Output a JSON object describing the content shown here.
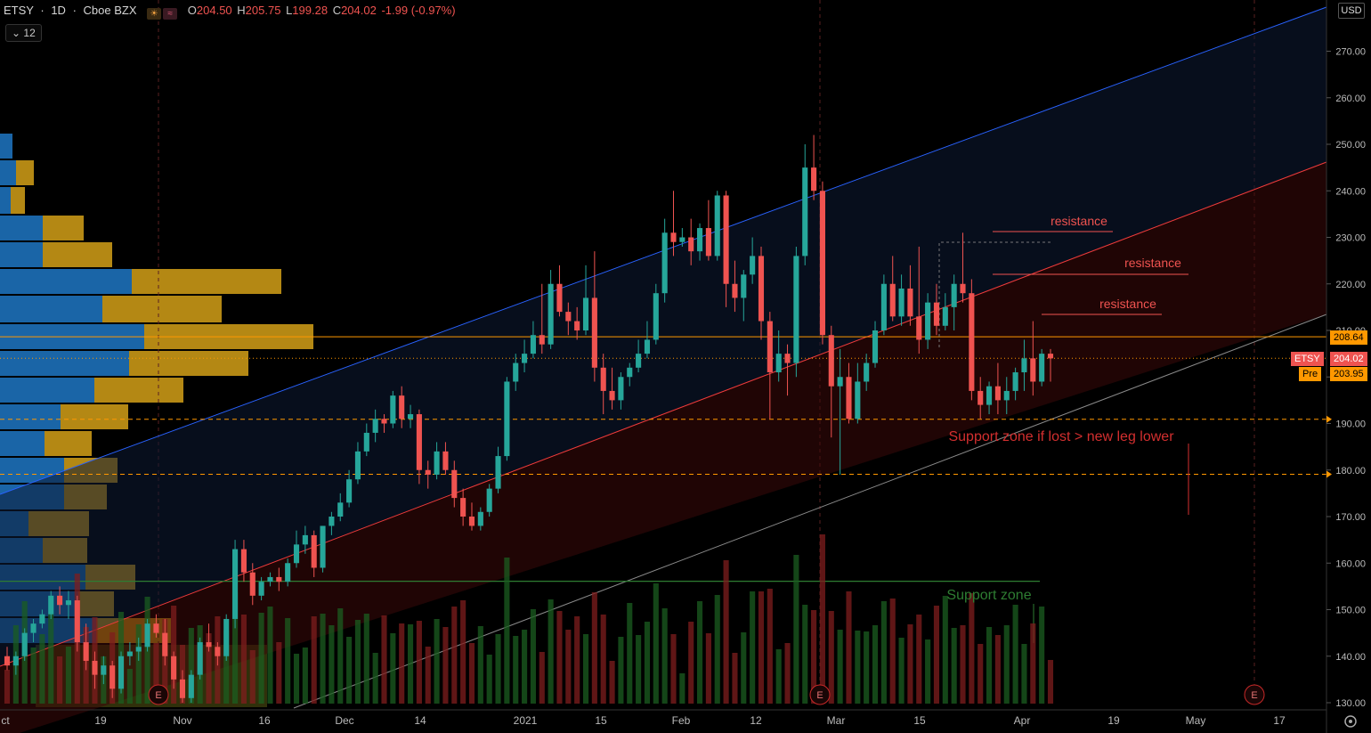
{
  "header": {
    "symbol": "ETSY",
    "interval": "1D",
    "exchange": "Cboe BZX",
    "open_label": "O",
    "open": "204.50",
    "high_label": "H",
    "high": "205.75",
    "low_label": "L",
    "low": "199.28",
    "close_label": "C",
    "close": "204.02",
    "change": "-1.99 (-0.97%)",
    "indicator_value": "12"
  },
  "currency": "USD",
  "price_tags": {
    "level": "208.64",
    "symbol": "ETSY",
    "last": "204.02",
    "pre_label": "Pre",
    "pre": "203.95"
  },
  "annotations": {
    "resistance_1": "resistance",
    "resistance_2": "resistance",
    "resistance_3": "resistance",
    "support_red": "Support zone if lost > new leg lower",
    "support_green": "Support zone",
    "earnings_1": "E",
    "earnings_2": "E",
    "earnings_3": "E"
  },
  "colors": {
    "up": "#26a69a",
    "down": "#ef5350",
    "orange": "#ff9800",
    "blue_line": "#2962ff",
    "red_line": "#ef3b3b",
    "green_line": "#2e7d32"
  },
  "chart_data": {
    "type": "candlestick",
    "ylim": [
      129,
      283
    ],
    "y_ticks": [
      130,
      140,
      150,
      160,
      170,
      180,
      190,
      200,
      210,
      220,
      230,
      240,
      250,
      260,
      270
    ],
    "x_labels": [
      "ct",
      "19",
      "Nov",
      "16",
      "Dec",
      "14",
      "2021",
      "15",
      "Feb",
      "12",
      "Mar",
      "15",
      "Apr",
      "19",
      "May",
      "17"
    ],
    "horizontal_levels": [
      208.64,
      190.9,
      179.1,
      156.1
    ],
    "series": [
      {
        "o": 140,
        "h": 142,
        "l": 137,
        "c": 138
      },
      {
        "o": 138,
        "h": 141,
        "l": 136,
        "c": 140
      },
      {
        "o": 140,
        "h": 146,
        "l": 139,
        "c": 145
      },
      {
        "o": 145,
        "h": 148,
        "l": 143,
        "c": 147
      },
      {
        "o": 147,
        "h": 150,
        "l": 146,
        "c": 149
      },
      {
        "o": 149,
        "h": 154,
        "l": 148,
        "c": 153
      },
      {
        "o": 153,
        "h": 155,
        "l": 149,
        "c": 151
      },
      {
        "o": 151,
        "h": 154,
        "l": 148,
        "c": 152
      },
      {
        "o": 152,
        "h": 153,
        "l": 141,
        "c": 143
      },
      {
        "o": 143,
        "h": 147,
        "l": 137,
        "c": 139
      },
      {
        "o": 139,
        "h": 141,
        "l": 133,
        "c": 136
      },
      {
        "o": 136,
        "h": 140,
        "l": 134,
        "c": 138
      },
      {
        "o": 138,
        "h": 139,
        "l": 131,
        "c": 133
      },
      {
        "o": 133,
        "h": 141,
        "l": 132,
        "c": 140
      },
      {
        "o": 140,
        "h": 143,
        "l": 138,
        "c": 141
      },
      {
        "o": 141,
        "h": 144,
        "l": 139,
        "c": 142
      },
      {
        "o": 142,
        "h": 148,
        "l": 141,
        "c": 147
      },
      {
        "o": 147,
        "h": 149,
        "l": 144,
        "c": 145
      },
      {
        "o": 145,
        "h": 148,
        "l": 138,
        "c": 140
      },
      {
        "o": 140,
        "h": 141,
        "l": 133,
        "c": 135
      },
      {
        "o": 135,
        "h": 137,
        "l": 130,
        "c": 131
      },
      {
        "o": 131,
        "h": 137,
        "l": 130,
        "c": 136
      },
      {
        "o": 136,
        "h": 144,
        "l": 135,
        "c": 143
      },
      {
        "o": 143,
        "h": 147,
        "l": 141,
        "c": 142
      },
      {
        "o": 142,
        "h": 143,
        "l": 138,
        "c": 140
      },
      {
        "o": 140,
        "h": 149,
        "l": 139,
        "c": 148
      },
      {
        "o": 148,
        "h": 165,
        "l": 146,
        "c": 163
      },
      {
        "o": 163,
        "h": 165,
        "l": 156,
        "c": 158
      },
      {
        "o": 158,
        "h": 160,
        "l": 151,
        "c": 153
      },
      {
        "o": 153,
        "h": 157,
        "l": 152,
        "c": 156
      },
      {
        "o": 156,
        "h": 158,
        "l": 155,
        "c": 157
      },
      {
        "o": 157,
        "h": 159,
        "l": 154,
        "c": 156
      },
      {
        "o": 156,
        "h": 161,
        "l": 155,
        "c": 160
      },
      {
        "o": 160,
        "h": 167,
        "l": 159,
        "c": 164
      },
      {
        "o": 164,
        "h": 168,
        "l": 162,
        "c": 166
      },
      {
        "o": 166,
        "h": 167,
        "l": 157,
        "c": 159
      },
      {
        "o": 159,
        "h": 168,
        "l": 158,
        "c": 168
      },
      {
        "o": 168,
        "h": 171,
        "l": 166,
        "c": 170
      },
      {
        "o": 170,
        "h": 175,
        "l": 169,
        "c": 173
      },
      {
        "o": 173,
        "h": 180,
        "l": 172,
        "c": 178
      },
      {
        "o": 178,
        "h": 186,
        "l": 177,
        "c": 184
      },
      {
        "o": 184,
        "h": 190,
        "l": 183,
        "c": 188
      },
      {
        "o": 188,
        "h": 193,
        "l": 186,
        "c": 191
      },
      {
        "o": 191,
        "h": 192,
        "l": 188,
        "c": 190
      },
      {
        "o": 190,
        "h": 197,
        "l": 189,
        "c": 196
      },
      {
        "o": 196,
        "h": 198,
        "l": 189,
        "c": 191
      },
      {
        "o": 191,
        "h": 194,
        "l": 189,
        "c": 192
      },
      {
        "o": 192,
        "h": 193,
        "l": 177,
        "c": 180
      },
      {
        "o": 180,
        "h": 182,
        "l": 176,
        "c": 179
      },
      {
        "o": 179,
        "h": 186,
        "l": 178,
        "c": 184
      },
      {
        "o": 184,
        "h": 186,
        "l": 179,
        "c": 180
      },
      {
        "o": 180,
        "h": 182,
        "l": 172,
        "c": 174
      },
      {
        "o": 174,
        "h": 176,
        "l": 168,
        "c": 170
      },
      {
        "o": 170,
        "h": 173,
        "l": 167,
        "c": 168
      },
      {
        "o": 168,
        "h": 172,
        "l": 167,
        "c": 171
      },
      {
        "o": 171,
        "h": 177,
        "l": 170,
        "c": 176
      },
      {
        "o": 176,
        "h": 185,
        "l": 175,
        "c": 183
      },
      {
        "o": 183,
        "h": 200,
        "l": 182,
        "c": 199
      },
      {
        "o": 199,
        "h": 205,
        "l": 197,
        "c": 203
      },
      {
        "o": 203,
        "h": 208,
        "l": 201,
        "c": 205
      },
      {
        "o": 205,
        "h": 212,
        "l": 204,
        "c": 209
      },
      {
        "o": 209,
        "h": 220,
        "l": 205,
        "c": 207
      },
      {
        "o": 207,
        "h": 223,
        "l": 206,
        "c": 220
      },
      {
        "o": 220,
        "h": 224,
        "l": 213,
        "c": 214
      },
      {
        "o": 214,
        "h": 216,
        "l": 209,
        "c": 212
      },
      {
        "o": 212,
        "h": 215,
        "l": 208,
        "c": 210
      },
      {
        "o": 210,
        "h": 224,
        "l": 209,
        "c": 217
      },
      {
        "o": 217,
        "h": 227,
        "l": 199,
        "c": 202
      },
      {
        "o": 202,
        "h": 205,
        "l": 192,
        "c": 197
      },
      {
        "o": 197,
        "h": 202,
        "l": 193,
        "c": 195
      },
      {
        "o": 195,
        "h": 201,
        "l": 193,
        "c": 200
      },
      {
        "o": 200,
        "h": 203,
        "l": 198,
        "c": 202
      },
      {
        "o": 202,
        "h": 208,
        "l": 201,
        "c": 205
      },
      {
        "o": 205,
        "h": 212,
        "l": 204,
        "c": 208
      },
      {
        "o": 208,
        "h": 220,
        "l": 207,
        "c": 218
      },
      {
        "o": 218,
        "h": 234,
        "l": 216,
        "c": 231
      },
      {
        "o": 231,
        "h": 240,
        "l": 226,
        "c": 229
      },
      {
        "o": 229,
        "h": 232,
        "l": 228,
        "c": 230
      },
      {
        "o": 230,
        "h": 234,
        "l": 224,
        "c": 227
      },
      {
        "o": 227,
        "h": 233,
        "l": 225,
        "c": 232
      },
      {
        "o": 232,
        "h": 238,
        "l": 225,
        "c": 226
      },
      {
        "o": 226,
        "h": 240,
        "l": 225,
        "c": 239
      },
      {
        "o": 239,
        "h": 240,
        "l": 215,
        "c": 220
      },
      {
        "o": 220,
        "h": 225,
        "l": 214,
        "c": 217
      },
      {
        "o": 217,
        "h": 223,
        "l": 212,
        "c": 222
      },
      {
        "o": 222,
        "h": 230,
        "l": 220,
        "c": 226
      },
      {
        "o": 226,
        "h": 228,
        "l": 208,
        "c": 212
      },
      {
        "o": 212,
        "h": 214,
        "l": 191,
        "c": 201
      },
      {
        "o": 201,
        "h": 210,
        "l": 199,
        "c": 205
      },
      {
        "o": 205,
        "h": 207,
        "l": 196,
        "c": 203
      },
      {
        "o": 203,
        "h": 228,
        "l": 200,
        "c": 226
      },
      {
        "o": 226,
        "h": 250,
        "l": 224,
        "c": 245
      },
      {
        "o": 245,
        "h": 252,
        "l": 238,
        "c": 240
      },
      {
        "o": 240,
        "h": 242,
        "l": 207,
        "c": 209
      },
      {
        "o": 209,
        "h": 211,
        "l": 187,
        "c": 198
      },
      {
        "o": 198,
        "h": 206,
        "l": 179,
        "c": 200
      },
      {
        "o": 200,
        "h": 203,
        "l": 190,
        "c": 191
      },
      {
        "o": 191,
        "h": 203,
        "l": 190,
        "c": 199
      },
      {
        "o": 199,
        "h": 205,
        "l": 197,
        "c": 203
      },
      {
        "o": 203,
        "h": 212,
        "l": 202,
        "c": 210
      },
      {
        "o": 210,
        "h": 222,
        "l": 209,
        "c": 220
      },
      {
        "o": 220,
        "h": 226,
        "l": 212,
        "c": 213
      },
      {
        "o": 213,
        "h": 222,
        "l": 211,
        "c": 219
      },
      {
        "o": 219,
        "h": 224,
        "l": 211,
        "c": 213
      },
      {
        "o": 213,
        "h": 228,
        "l": 205,
        "c": 208
      },
      {
        "o": 208,
        "h": 218,
        "l": 206,
        "c": 216
      },
      {
        "o": 216,
        "h": 220,
        "l": 209,
        "c": 211
      },
      {
        "o": 211,
        "h": 218,
        "l": 210,
        "c": 215
      },
      {
        "o": 215,
        "h": 222,
        "l": 210,
        "c": 220
      },
      {
        "o": 220,
        "h": 231,
        "l": 216,
        "c": 218
      },
      {
        "o": 218,
        "h": 221,
        "l": 195,
        "c": 197
      },
      {
        "o": 197,
        "h": 200,
        "l": 191,
        "c": 194
      },
      {
        "o": 194,
        "h": 199,
        "l": 192,
        "c": 198
      },
      {
        "o": 198,
        "h": 203,
        "l": 192,
        "c": 195
      },
      {
        "o": 195,
        "h": 200,
        "l": 192,
        "c": 197
      },
      {
        "o": 197,
        "h": 202,
        "l": 195,
        "c": 201
      },
      {
        "o": 201,
        "h": 208,
        "l": 197,
        "c": 204
      },
      {
        "o": 204,
        "h": 212,
        "l": 196,
        "c": 199
      },
      {
        "o": 199,
        "h": 206,
        "l": 198,
        "c": 205
      },
      {
        "o": 205,
        "h": 206,
        "l": 199,
        "c": 204
      }
    ]
  }
}
